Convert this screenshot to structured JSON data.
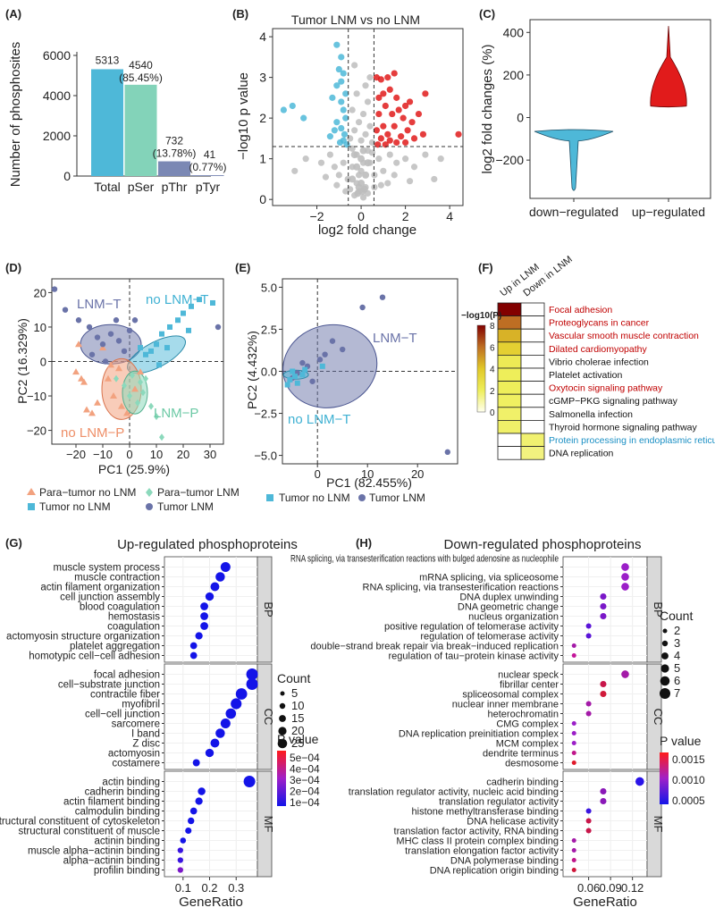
{
  "colors": {
    "blue": "#4EB8D8",
    "teal": "#83D3B9",
    "slate": "#7B88B4",
    "red": "#E11B1B",
    "grey": "#BDBDBD",
    "salmon": "#F2A27F",
    "lightgreen": "#8CD9BC",
    "indigo": "#6A73A8",
    "dotblue": "#1414E8"
  },
  "chart_data": [
    {
      "panel": "(A)",
      "type": "bar",
      "categories": [
        "Total",
        "pSer",
        "pThr",
        "pTyr"
      ],
      "values": [
        5313,
        4540,
        732,
        41
      ],
      "labels": [
        "5313",
        "4540",
        "732",
        "41"
      ],
      "pct_labels": [
        "",
        "(85.45%)",
        "(13.78%)",
        "(0.77%)"
      ],
      "ylabel": "Number of phosphosites",
      "ylim": [
        0,
        6000
      ],
      "yticks": [
        "0",
        "2000",
        "4000",
        "6000"
      ]
    },
    {
      "panel": "(B)",
      "type": "scatter",
      "title": "Tumor LNM vs no LNM",
      "xlabel": "log2 fold change",
      "ylabel": "−log10 p value",
      "xlim": [
        -4,
        4.6
      ],
      "ylim": [
        -0.15,
        4.2
      ],
      "xticks": [
        "−2",
        "0",
        "2",
        "4"
      ],
      "yticks": [
        "0",
        "1",
        "2",
        "3",
        "4"
      ],
      "threshold_x": [
        -0.58,
        0.58
      ],
      "threshold_y": 1.3,
      "series": [
        {
          "name": "down",
          "points": [
            [
              -3.5,
              2.2
            ],
            [
              -3.1,
              2.3
            ],
            [
              -2.6,
              2.0
            ],
            [
              -1.1,
              3.8
            ],
            [
              -0.9,
              3.5
            ],
            [
              -1.0,
              3.2
            ],
            [
              -0.8,
              3.1
            ],
            [
              -1.1,
              2.8
            ],
            [
              -0.9,
              2.9
            ],
            [
              -0.7,
              2.6
            ],
            [
              -1.3,
              2.5
            ],
            [
              -0.9,
              2.4
            ],
            [
              -0.8,
              2.2
            ],
            [
              -0.7,
              2.0
            ],
            [
              -1.1,
              1.9
            ],
            [
              -0.9,
              1.75
            ],
            [
              -0.75,
              1.6
            ],
            [
              -1.4,
              1.55
            ],
            [
              -0.8,
              1.45
            ],
            [
              -0.65,
              1.35
            ],
            [
              -0.95,
              1.4
            ],
            [
              -1.2,
              1.7
            ]
          ]
        },
        {
          "name": "up",
          "points": [
            [
              4.4,
              1.6
            ],
            [
              2.9,
              2.6
            ],
            [
              2.8,
              1.6
            ],
            [
              0.7,
              3.0
            ],
            [
              0.9,
              2.95
            ],
            [
              1.2,
              3.0
            ],
            [
              1.3,
              2.7
            ],
            [
              1.6,
              2.5
            ],
            [
              2.0,
              2.3
            ],
            [
              1.1,
              2.3
            ],
            [
              0.8,
              2.1
            ],
            [
              1.4,
              2.1
            ],
            [
              1.9,
              2.0
            ],
            [
              2.3,
              1.9
            ],
            [
              1.0,
              1.8
            ],
            [
              1.5,
              1.8
            ],
            [
              2.1,
              1.7
            ],
            [
              0.7,
              1.7
            ],
            [
              1.2,
              1.6
            ],
            [
              1.8,
              1.55
            ],
            [
              2.4,
              1.5
            ],
            [
              0.9,
              1.5
            ],
            [
              1.3,
              1.45
            ],
            [
              1.6,
              1.4
            ],
            [
              2.0,
              1.4
            ],
            [
              0.75,
              1.35
            ],
            [
              1.1,
              1.35
            ],
            [
              2.6,
              2.1
            ],
            [
              1.7,
              2.2
            ],
            [
              0.8,
              2.5
            ],
            [
              1.0,
              2.6
            ],
            [
              1.5,
              3.1
            ],
            [
              2.2,
              2.4
            ]
          ]
        },
        {
          "name": "ns",
          "points": [
            [
              -0.3,
              3.3
            ],
            [
              0.2,
              2.8
            ],
            [
              0.4,
              3.0
            ],
            [
              -0.2,
              2.6
            ],
            [
              0.3,
              2.4
            ],
            [
              -0.4,
              2.2
            ],
            [
              0.1,
              2.1
            ],
            [
              -0.1,
              1.9
            ],
            [
              0.4,
              1.8
            ],
            [
              -0.3,
              1.7
            ],
            [
              0.2,
              1.6
            ],
            [
              -0.5,
              1.5
            ],
            [
              0.5,
              1.4
            ],
            [
              0,
              1.45
            ],
            [
              -2.5,
              1.0
            ],
            [
              -1.8,
              0.9
            ],
            [
              -1.4,
              1.1
            ],
            [
              -1.2,
              0.8
            ],
            [
              -1.0,
              0.6
            ],
            [
              -0.8,
              0.9
            ],
            [
              -0.6,
              0.5
            ],
            [
              -0.4,
              0.8
            ],
            [
              -0.2,
              0.4
            ],
            [
              0,
              0.7
            ],
            [
              0.2,
              0.3
            ],
            [
              0.4,
              0.9
            ],
            [
              0.6,
              0.6
            ],
            [
              0.8,
              1.0
            ],
            [
              1.0,
              0.7
            ],
            [
              1.3,
              1.1
            ],
            [
              1.6,
              0.9
            ],
            [
              2.0,
              1.0
            ],
            [
              2.4,
              0.8
            ],
            [
              2.9,
              1.1
            ],
            [
              3.3,
              0.5
            ],
            [
              3.6,
              1.0
            ],
            [
              -3.0,
              0.7
            ],
            [
              -0.3,
              0.1
            ],
            [
              0.1,
              0.05
            ],
            [
              -0.1,
              0.2
            ],
            [
              0.3,
              0.15
            ],
            [
              -0.5,
              0.25
            ],
            [
              0.6,
              0.3
            ],
            [
              -0.7,
              0.2
            ],
            [
              0.9,
              0.35
            ],
            [
              1.2,
              0.4
            ],
            [
              -1.1,
              0.35
            ],
            [
              -0.2,
              1.1
            ],
            [
              0.3,
              1.2
            ],
            [
              -0.4,
              1.25
            ],
            [
              0.5,
              1.15
            ],
            [
              0.1,
              0.9
            ],
            [
              -0.1,
              0.6
            ],
            [
              1.5,
              0.6
            ],
            [
              -1.6,
              0.55
            ],
            [
              2.2,
              0.45
            ]
          ]
        }
      ]
    },
    {
      "panel": "(C)",
      "type": "violin",
      "categories": [
        "down−regulated",
        "up−regulated"
      ],
      "ylabel": "log2 fold changes (%)",
      "ylim": [
        -380,
        460
      ],
      "yticks": [
        "−200",
        "0",
        "200",
        "400"
      ]
    },
    {
      "panel": "(D)",
      "type": "scatter",
      "xlabel": "PC1 (25.9%)",
      "ylabel": "PC2 (16.329%)",
      "xlim": [
        -29,
        35
      ],
      "ylim": [
        -24,
        24
      ],
      "xticks": [
        "−20",
        "−10",
        "0",
        "10",
        "20",
        "30"
      ],
      "yticks": [
        "−20",
        "−10",
        "0",
        "10",
        "20"
      ],
      "ellipse_labels": [
        "LNM−T",
        "no LNM−T",
        "LNM−P",
        "no LNM−P"
      ],
      "legend": [
        "Para−tumor no LNM",
        "Para−tumor LNM",
        "Tumor no LNM",
        "Tumor LNM"
      ]
    },
    {
      "panel": "(E)",
      "type": "scatter",
      "xlabel": "PC1 (82.455%)",
      "ylabel": "PC2 (4.432%)",
      "xlim": [
        -7,
        28
      ],
      "ylim": [
        -5.5,
        5.5
      ],
      "xticks": [
        "0",
        "10",
        "20"
      ],
      "yticks": [
        "−5.0",
        "−2.5",
        "0.0",
        "2.5",
        "5.0"
      ],
      "ellipse_labels": [
        "LNM−T",
        "no LNM−T"
      ],
      "legend": [
        "Tumor no LNM",
        "Tumor LNM"
      ]
    },
    {
      "panel": "(F)",
      "type": "heatmap",
      "columns": [
        "Up in LNM",
        "Down in LNM"
      ],
      "rows": [
        "Focal adhesion",
        "Proteoglycans in cancer",
        "Vascular smooth muscle contraction",
        "Dilated cardiomyopathy",
        "Vibrio cholerae infection",
        "Platelet activation",
        "Oxytocin signaling pathway",
        "cGMP−PKG signaling pathway",
        "Salmonella infection",
        "Thyroid hormone signaling pathway",
        "Protein processing in endoplasmic reticulum",
        "DNA replication"
      ],
      "row_colors": [
        "#c00000",
        "#c00000",
        "#c00000",
        "#c00000",
        "#111111",
        "#111111",
        "#c00000",
        "#111111",
        "#111111",
        "#111111",
        "#1a8fc4",
        "#111111"
      ],
      "values_up": [
        8,
        6,
        4.5,
        3.6,
        2.2,
        2.0,
        2.0,
        1.9,
        1.8,
        1.8,
        0,
        0
      ],
      "values_down": [
        0,
        0,
        0,
        0,
        0,
        0,
        0,
        0,
        0,
        0,
        1.5,
        1.3
      ],
      "legend_title": "−log10(P)",
      "legend_ticks": [
        "8",
        "6",
        "4",
        "2",
        "0"
      ]
    },
    {
      "panel": "(G)",
      "type": "dot",
      "title": "Up-regulated phosphoproteins",
      "xlabel": "GeneRatio",
      "xticks": [
        "0.1",
        "0.2",
        "0.3"
      ],
      "groups": [
        {
          "name": "BP",
          "terms": [
            "muscle system process",
            "muscle contraction",
            "actin filament organization",
            "cell junction assembly",
            "blood coagulation",
            "hemostasis",
            "coagulation",
            "actomyosin structure organization",
            "platelet aggregation",
            "homotypic cell−cell adhesion"
          ],
          "ratio": [
            0.26,
            0.24,
            0.22,
            0.2,
            0.18,
            0.18,
            0.18,
            0.16,
            0.14,
            0.14
          ]
        },
        {
          "name": "CC",
          "terms": [
            "focal adhesion",
            "cell−substrate junction",
            "contractile fiber",
            "myofibril",
            "cell−cell junction",
            "sarcomere",
            "I band",
            "Z disc",
            "actomyosin",
            "costamere"
          ],
          "ratio": [
            0.36,
            0.36,
            0.32,
            0.3,
            0.28,
            0.26,
            0.24,
            0.22,
            0.2,
            0.15
          ]
        },
        {
          "name": "MF",
          "terms": [
            "actin binding",
            "cadherin binding",
            "actin filament binding",
            "calmodulin binding",
            "structural constituent of cytoskeleton",
            "structural constituent of muscle",
            "actinin binding",
            "muscle alpha−actinin binding",
            "alpha−actinin binding",
            "profilin binding"
          ],
          "ratio": [
            0.35,
            0.17,
            0.16,
            0.14,
            0.13,
            0.12,
            0.1,
            0.09,
            0.09,
            0.09
          ]
        }
      ],
      "size_title": "Count",
      "size_legend": [
        "5",
        "10",
        "15",
        "20",
        "25"
      ],
      "color_title": "P value",
      "color_legend": [
        "5e−04",
        "4e−04",
        "3e−04",
        "2e−04",
        "1e−04"
      ]
    },
    {
      "panel": "(H)",
      "type": "dot",
      "title": "Down-regulated phosphoproteins",
      "xlabel": "GeneRatio",
      "xticks": [
        "0.06",
        "0.09",
        "0.12"
      ],
      "groups": [
        {
          "name": "BP",
          "terms": [
            "RNA splicing, via transesterification reactions with bulged adenosine as nucleophile",
            "mRNA splicing, via spliceosome",
            "RNA splicing, via transesterification reactions",
            "DNA duplex unwinding",
            "DNA geometric change",
            "nucleus organization",
            "positive regulation of telomerase activity",
            "regulation of telomerase activity",
            "double−strand break repair via break−induced replication",
            "regulation of tau−protein kinase activity"
          ],
          "ratio": [
            0.11,
            0.11,
            0.11,
            0.08,
            0.08,
            0.08,
            0.06,
            0.06,
            0.04,
            0.04
          ]
        },
        {
          "name": "CC",
          "terms": [
            "nuclear speck",
            "fibrillar center",
            "spliceosomal complex",
            "nuclear inner membrane",
            "heterochromatin",
            "CMG complex",
            "DNA replication preinitiation complex",
            "MCM complex",
            "dendrite terminus",
            "desmosome"
          ],
          "ratio": [
            0.11,
            0.08,
            0.08,
            0.06,
            0.06,
            0.04,
            0.04,
            0.04,
            0.04,
            0.04
          ]
        },
        {
          "name": "MF",
          "terms": [
            "cadherin binding",
            "translation regulator activity, nucleic acid binding",
            "translation regulator activity",
            "histone methyltransferase binding",
            "DNA helicase activity",
            "translation factor activity, RNA binding",
            "MHC class II protein complex binding",
            "translation elongation factor activity",
            "DNA polymerase binding",
            "DNA replication origin binding"
          ],
          "ratio": [
            0.13,
            0.08,
            0.08,
            0.06,
            0.06,
            0.06,
            0.04,
            0.04,
            0.04,
            0.04
          ]
        }
      ],
      "size_title": "Count",
      "size_legend": [
        "2",
        "3",
        "4",
        "5",
        "6",
        "7"
      ],
      "color_title": "P value",
      "color_legend": [
        "0.0015",
        "0.0010",
        "0.0005"
      ]
    }
  ]
}
